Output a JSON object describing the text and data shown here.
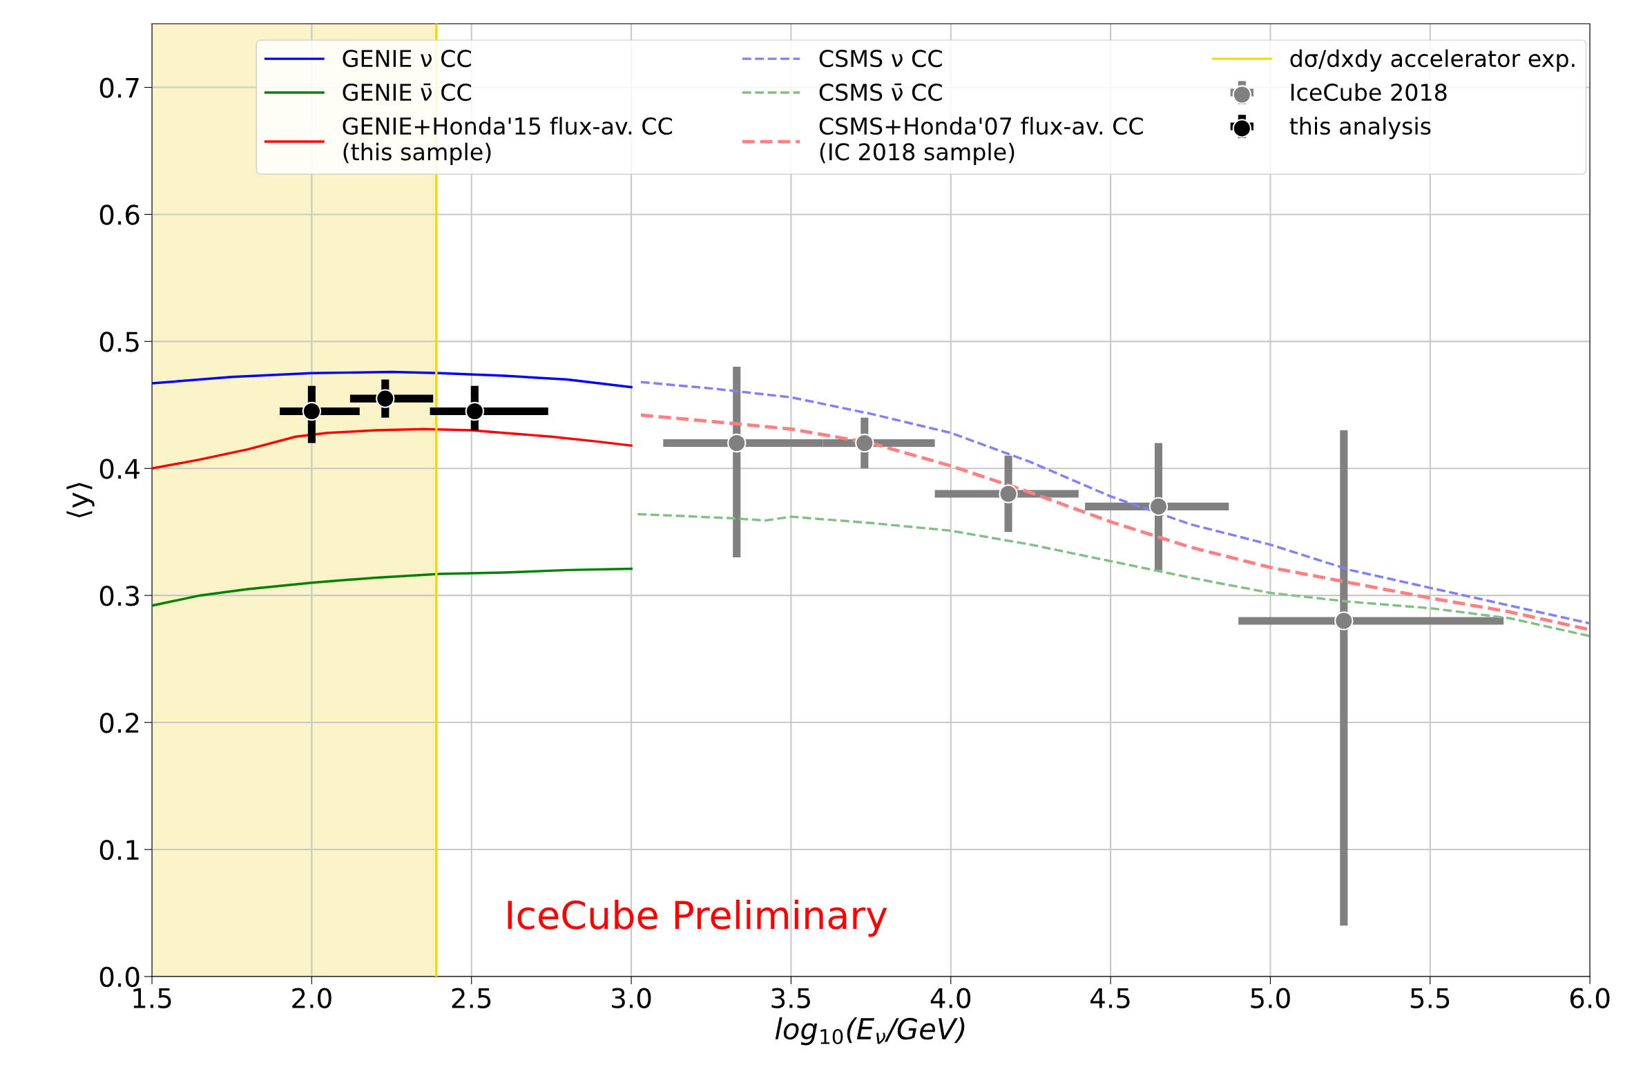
{
  "chart_data": {
    "type": "line",
    "xlabel": "log$_{10}$(E$_{ν}$/GeV)",
    "ylabel": "⟨y⟩",
    "xlim": [
      1.5,
      6.0
    ],
    "ylim": [
      0,
      0.75
    ],
    "xticks": [
      1.5,
      {
        "value": 2,
        "label": "2.0"
      },
      2.5,
      {
        "value": 3,
        "label": "3.0"
      },
      3.5,
      {
        "value": 4,
        "label": "4.0"
      },
      4.5,
      {
        "value": 5,
        "label": "5.0"
      },
      5.5,
      {
        "value": 6,
        "label": "6.0"
      }
    ],
    "yticks": [
      {
        "value": 0,
        "label": "0.0"
      },
      0.1,
      0.2,
      0.3,
      0.4,
      0.5,
      0.6,
      0.7
    ],
    "grid": true,
    "legend": "top",
    "annotations": [
      "IceCube Preliminary"
    ],
    "bands": [
      {
        "axis": "x",
        "from": 1.5,
        "to": 2.39,
        "color": "#faf3c8"
      }
    ],
    "series": [
      {
        "name": "GENIE ν CC",
        "color": "#0000ff",
        "line_style": "solid",
        "x": [
          1.5,
          1.75,
          2.0,
          2.25,
          2.4,
          2.6,
          2.8,
          3.0
        ],
        "values": [
          0.467,
          0.472,
          0.475,
          0.476,
          0.475,
          0.473,
          0.47,
          0.464
        ]
      },
      {
        "name": "GENIE ν̄ CC",
        "color": "#008000",
        "line_style": "solid",
        "x": [
          1.5,
          1.65,
          1.8,
          2.0,
          2.2,
          2.4,
          2.6,
          2.8,
          3.0
        ],
        "values": [
          0.292,
          0.3,
          0.305,
          0.31,
          0.314,
          0.317,
          0.318,
          0.32,
          0.321
        ]
      },
      {
        "name": "GENIE+Honda'15 flux-av. CC\n(this sample)",
        "color": "#ff0000",
        "line_style": "solid",
        "x": [
          1.5,
          1.65,
          1.8,
          1.95,
          2.05,
          2.2,
          2.35,
          2.5,
          2.6,
          2.75,
          2.9,
          3.0
        ],
        "values": [
          0.4,
          0.407,
          0.415,
          0.425,
          0.428,
          0.43,
          0.431,
          0.43,
          0.428,
          0.425,
          0.421,
          0.418
        ]
      },
      {
        "name": "CSMS ν CC",
        "color": "#8080ff",
        "line_style": "dashed",
        "x": [
          3.03,
          3.25,
          3.5,
          3.75,
          4.0,
          4.25,
          4.5,
          4.75,
          5.0,
          5.25,
          5.5,
          5.75,
          6.0
        ],
        "values": [
          0.468,
          0.463,
          0.456,
          0.443,
          0.428,
          0.405,
          0.378,
          0.356,
          0.34,
          0.32,
          0.306,
          0.292,
          0.278
        ]
      },
      {
        "name": "CSMS ν̄ CC",
        "color": "#80c080",
        "line_style": "dashed",
        "x": [
          3.02,
          3.3,
          3.42,
          3.5,
          3.75,
          4.0,
          4.25,
          4.5,
          4.75,
          5.0,
          5.25,
          5.5,
          5.75,
          6.0
        ],
        "values": [
          0.364,
          0.361,
          0.359,
          0.362,
          0.357,
          0.351,
          0.34,
          0.327,
          0.314,
          0.302,
          0.295,
          0.29,
          0.282,
          0.268
        ]
      },
      {
        "name": "CSMS+Honda'07 flux-av. CC\n(IC 2018 sample)",
        "color": "#ff8080",
        "line_style": "dashed",
        "x": [
          3.03,
          3.25,
          3.5,
          3.75,
          4.0,
          4.25,
          4.5,
          4.75,
          5.0,
          5.25,
          5.5,
          5.75,
          6.0
        ],
        "values": [
          0.442,
          0.437,
          0.431,
          0.42,
          0.402,
          0.381,
          0.358,
          0.338,
          0.322,
          0.31,
          0.298,
          0.287,
          0.273
        ]
      },
      {
        "name": "dσ/dxdy accelerator exp.",
        "color": "#ffd700",
        "line_style": "solid",
        "x": [
          2.39,
          2.39
        ],
        "values": [
          0,
          0.75
        ]
      },
      {
        "name": "IceCube 2018",
        "type": "scatter",
        "color": "#808080",
        "marker": "circle",
        "x": [
          3.33,
          3.73,
          4.18,
          4.65,
          5.23
        ],
        "values": [
          0.42,
          0.42,
          0.38,
          0.37,
          0.28
        ],
        "errors": [
          [
            0.33,
            0.48
          ],
          [
            0.4,
            0.44
          ],
          [
            0.35,
            0.41
          ],
          [
            0.32,
            0.42
          ],
          [
            0.04,
            0.43
          ]
        ],
        "xerrors": [
          [
            3.1,
            3.6
          ],
          [
            3.6,
            3.95
          ],
          [
            3.95,
            4.4
          ],
          [
            4.42,
            4.87
          ],
          [
            4.9,
            5.73
          ]
        ]
      },
      {
        "name": "this analysis",
        "type": "scatter",
        "color": "#000000",
        "marker": "circle",
        "x": [
          2.0,
          2.23,
          2.51
        ],
        "values": [
          0.445,
          0.455,
          0.445
        ],
        "errors": [
          [
            0.42,
            0.465
          ],
          [
            0.44,
            0.47
          ],
          [
            0.43,
            0.465
          ]
        ],
        "xerrors": [
          [
            1.9,
            2.15
          ],
          [
            2.12,
            2.38
          ],
          [
            2.37,
            2.74
          ]
        ]
      }
    ]
  }
}
